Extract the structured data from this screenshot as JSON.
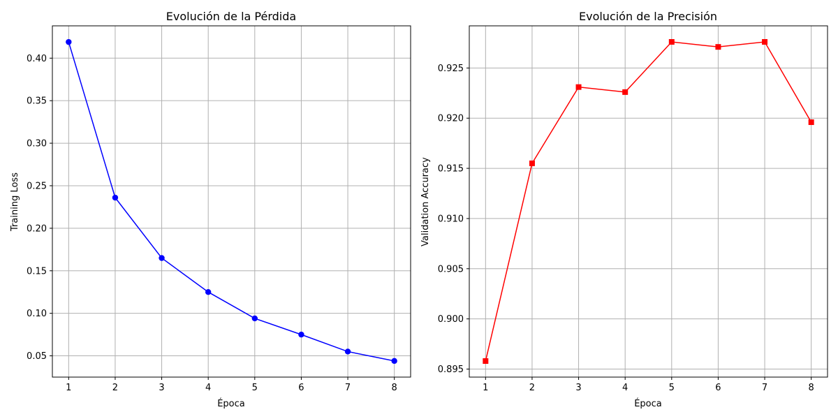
{
  "chart_data": [
    {
      "type": "line",
      "title": "Evolución de la Pérdida",
      "xlabel": "Época",
      "ylabel": "Training Loss",
      "x": [
        1,
        2,
        3,
        4,
        5,
        6,
        7,
        8
      ],
      "series": [
        {
          "name": "Training Loss",
          "values": [
            0.419,
            0.236,
            0.165,
            0.125,
            0.094,
            0.075,
            0.055,
            0.044
          ],
          "color": "#0000ff",
          "marker": "circle"
        }
      ],
      "xlim": [
        0.65,
        8.35
      ],
      "ylim": [
        0.025,
        0.438
      ],
      "xticks": [
        1,
        2,
        3,
        4,
        5,
        6,
        7,
        8
      ],
      "yticks": [
        0.05,
        0.1,
        0.15,
        0.2,
        0.25,
        0.3,
        0.35,
        0.4
      ],
      "ytick_labels": [
        "0.05",
        "0.10",
        "0.15",
        "0.20",
        "0.25",
        "0.30",
        "0.35",
        "0.40"
      ],
      "grid": true
    },
    {
      "type": "line",
      "title": "Evolución de la Precisión",
      "xlabel": "Época",
      "ylabel": "Validation Accuracy",
      "x": [
        1,
        2,
        3,
        4,
        5,
        6,
        7,
        8
      ],
      "series": [
        {
          "name": "Validation Accuracy",
          "values": [
            0.8958,
            0.9155,
            0.9231,
            0.9226,
            0.9276,
            0.9271,
            0.9276,
            0.9196
          ],
          "color": "#ff0000",
          "marker": "square"
        }
      ],
      "xlim": [
        0.65,
        8.35
      ],
      "ylim": [
        0.8942,
        0.9292
      ],
      "xticks": [
        1,
        2,
        3,
        4,
        5,
        6,
        7,
        8
      ],
      "yticks": [
        0.895,
        0.9,
        0.905,
        0.91,
        0.915,
        0.92,
        0.925
      ],
      "ytick_labels": [
        "0.895",
        "0.900",
        "0.905",
        "0.910",
        "0.915",
        "0.920",
        "0.925"
      ],
      "grid": true
    }
  ]
}
